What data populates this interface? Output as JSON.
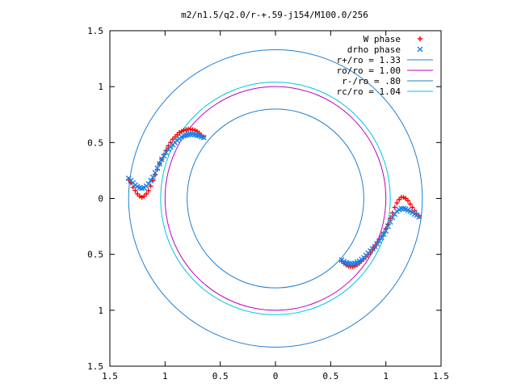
{
  "chart_data": {
    "type": "scatter",
    "title": "m2/n1.5/q2.0/r-+.59-j154/M100.0/256",
    "xlim": [
      -1.5,
      1.5
    ],
    "ylim": [
      -1.5,
      1.5
    ],
    "x_ticks": [
      {
        "value": -1.5,
        "label": "1.5"
      },
      {
        "value": -1.0,
        "label": "1"
      },
      {
        "value": -0.5,
        "label": "0.5"
      },
      {
        "value": 0,
        "label": "0"
      },
      {
        "value": 0.5,
        "label": "0.5"
      },
      {
        "value": 1.0,
        "label": "1"
      },
      {
        "value": 1.5,
        "label": "1.5"
      }
    ],
    "y_ticks": [
      {
        "value": 1.5,
        "label": "1.5"
      },
      {
        "value": 1.0,
        "label": "1"
      },
      {
        "value": 0.5,
        "label": "0.5"
      },
      {
        "value": 0,
        "label": "0"
      },
      {
        "value": -0.5,
        "label": "0.5"
      },
      {
        "value": -1.0,
        "label": "1"
      },
      {
        "value": -1.5,
        "label": "1.5"
      }
    ],
    "grid": false,
    "legend_position": "top-right",
    "circles": [
      {
        "name": "r+/ro = 1.33",
        "radius": 1.33,
        "color": "#1f7fd0"
      },
      {
        "name": "ro/ro = 1.00",
        "radius": 1.0,
        "color": "#c000c0"
      },
      {
        "name": "r-/ro = .80",
        "radius": 0.8,
        "color": "#1f7fd0"
      },
      {
        "name": "rc/ro = 1.04",
        "radius": 1.04,
        "color": "#00c8d8"
      }
    ],
    "series": [
      {
        "name": "W phase",
        "marker": "+",
        "color": "#ff0000",
        "points": [
          [
            -1.33,
            0.17
          ],
          [
            -1.31,
            0.14
          ],
          [
            -1.29,
            0.1
          ],
          [
            -1.27,
            0.07
          ],
          [
            -1.25,
            0.04
          ],
          [
            -1.23,
            0.02
          ],
          [
            -1.21,
            0.01
          ],
          [
            -1.19,
            0.02
          ],
          [
            -1.17,
            0.04
          ],
          [
            -1.15,
            0.07
          ],
          [
            -1.13,
            0.11
          ],
          [
            -1.11,
            0.16
          ],
          [
            -1.09,
            0.21
          ],
          [
            -1.07,
            0.26
          ],
          [
            -1.05,
            0.31
          ],
          [
            -1.03,
            0.35
          ],
          [
            -1.01,
            0.39
          ],
          [
            -0.99,
            0.43
          ],
          [
            -0.97,
            0.47
          ],
          [
            -0.95,
            0.5
          ],
          [
            -0.93,
            0.53
          ],
          [
            -0.91,
            0.55
          ],
          [
            -0.89,
            0.57
          ],
          [
            -0.87,
            0.59
          ],
          [
            -0.85,
            0.6
          ],
          [
            -0.83,
            0.61
          ],
          [
            -0.81,
            0.615
          ],
          [
            -0.79,
            0.62
          ],
          [
            -0.77,
            0.62
          ],
          [
            -0.75,
            0.615
          ],
          [
            -0.73,
            0.61
          ],
          [
            -0.71,
            0.6
          ],
          [
            -0.69,
            0.585
          ],
          [
            -0.67,
            0.565
          ],
          [
            -0.65,
            0.55
          ],
          [
            0.6,
            -0.56
          ],
          [
            0.62,
            -0.58
          ],
          [
            0.64,
            -0.595
          ],
          [
            0.66,
            -0.605
          ],
          [
            0.68,
            -0.61
          ],
          [
            0.7,
            -0.61
          ],
          [
            0.72,
            -0.605
          ],
          [
            0.74,
            -0.595
          ],
          [
            0.76,
            -0.58
          ],
          [
            0.78,
            -0.56
          ],
          [
            0.8,
            -0.54
          ],
          [
            0.82,
            -0.52
          ],
          [
            0.84,
            -0.5
          ],
          [
            0.86,
            -0.48
          ],
          [
            0.88,
            -0.455
          ],
          [
            0.9,
            -0.43
          ],
          [
            0.92,
            -0.4
          ],
          [
            0.94,
            -0.37
          ],
          [
            0.96,
            -0.34
          ],
          [
            0.98,
            -0.31
          ],
          [
            1.0,
            -0.27
          ],
          [
            1.02,
            -0.23
          ],
          [
            1.04,
            -0.18
          ],
          [
            1.06,
            -0.13
          ],
          [
            1.08,
            -0.08
          ],
          [
            1.1,
            -0.04
          ],
          [
            1.12,
            -0.01
          ],
          [
            1.14,
            0.01
          ],
          [
            1.16,
            0.01
          ],
          [
            1.18,
            0.0
          ],
          [
            1.2,
            -0.02
          ],
          [
            1.22,
            -0.05
          ],
          [
            1.24,
            -0.08
          ],
          [
            1.26,
            -0.11
          ],
          [
            1.28,
            -0.14
          ],
          [
            1.3,
            -0.16
          ]
        ]
      },
      {
        "name": "drho phase",
        "marker": "x",
        "color": "#1a80e6",
        "points": [
          [
            -1.33,
            0.18
          ],
          [
            -1.31,
            0.16
          ],
          [
            -1.29,
            0.14
          ],
          [
            -1.27,
            0.12
          ],
          [
            -1.25,
            0.105
          ],
          [
            -1.23,
            0.095
          ],
          [
            -1.21,
            0.09
          ],
          [
            -1.19,
            0.095
          ],
          [
            -1.17,
            0.11
          ],
          [
            -1.15,
            0.13
          ],
          [
            -1.13,
            0.16
          ],
          [
            -1.11,
            0.19
          ],
          [
            -1.09,
            0.23
          ],
          [
            -1.07,
            0.27
          ],
          [
            -1.05,
            0.31
          ],
          [
            -1.03,
            0.35
          ],
          [
            -1.01,
            0.38
          ],
          [
            -0.99,
            0.41
          ],
          [
            -0.97,
            0.44
          ],
          [
            -0.95,
            0.46
          ],
          [
            -0.93,
            0.48
          ],
          [
            -0.91,
            0.5
          ],
          [
            -0.89,
            0.52
          ],
          [
            -0.87,
            0.535
          ],
          [
            -0.85,
            0.55
          ],
          [
            -0.83,
            0.56
          ],
          [
            -0.81,
            0.565
          ],
          [
            -0.79,
            0.57
          ],
          [
            -0.77,
            0.575
          ],
          [
            -0.75,
            0.575
          ],
          [
            -0.73,
            0.57
          ],
          [
            -0.71,
            0.565
          ],
          [
            -0.69,
            0.56
          ],
          [
            -0.67,
            0.55
          ],
          [
            -0.65,
            0.545
          ],
          [
            0.6,
            -0.55
          ],
          [
            0.62,
            -0.565
          ],
          [
            0.64,
            -0.575
          ],
          [
            0.66,
            -0.58
          ],
          [
            0.68,
            -0.585
          ],
          [
            0.7,
            -0.585
          ],
          [
            0.72,
            -0.58
          ],
          [
            0.74,
            -0.57
          ],
          [
            0.76,
            -0.56
          ],
          [
            0.78,
            -0.545
          ],
          [
            0.8,
            -0.53
          ],
          [
            0.82,
            -0.51
          ],
          [
            0.84,
            -0.49
          ],
          [
            0.86,
            -0.47
          ],
          [
            0.88,
            -0.45
          ],
          [
            0.9,
            -0.43
          ],
          [
            0.92,
            -0.405
          ],
          [
            0.94,
            -0.38
          ],
          [
            0.96,
            -0.35
          ],
          [
            0.98,
            -0.32
          ],
          [
            1.0,
            -0.29
          ],
          [
            1.02,
            -0.25
          ],
          [
            1.04,
            -0.21
          ],
          [
            1.06,
            -0.17
          ],
          [
            1.08,
            -0.14
          ],
          [
            1.1,
            -0.115
          ],
          [
            1.12,
            -0.1
          ],
          [
            1.14,
            -0.09
          ],
          [
            1.16,
            -0.09
          ],
          [
            1.18,
            -0.095
          ],
          [
            1.2,
            -0.105
          ],
          [
            1.22,
            -0.115
          ],
          [
            1.24,
            -0.125
          ],
          [
            1.26,
            -0.14
          ],
          [
            1.28,
            -0.15
          ],
          [
            1.3,
            -0.165
          ]
        ]
      }
    ]
  }
}
